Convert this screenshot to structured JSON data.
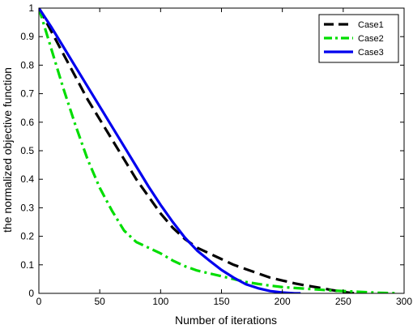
{
  "chart_data": {
    "type": "line",
    "title": "",
    "xlabel": "Number of iterations",
    "ylabel": "the normalized objective function",
    "xlim": [
      0,
      300
    ],
    "ylim": [
      0,
      1
    ],
    "xticks": [
      0,
      50,
      100,
      150,
      200,
      250,
      300
    ],
    "yticks": [
      0,
      0.1,
      0.2,
      0.3,
      0.4,
      0.5,
      0.6,
      0.7,
      0.8,
      0.9,
      1
    ],
    "grid": false,
    "legend_position": "top-right",
    "series": [
      {
        "name": "Case1",
        "color": "#000000",
        "style": "dashed",
        "x": [
          0,
          10,
          20,
          30,
          40,
          50,
          60,
          70,
          80,
          90,
          100,
          110,
          120,
          130,
          140,
          150,
          160,
          170,
          180,
          190,
          200,
          210,
          220,
          230,
          240,
          250,
          260
        ],
        "y": [
          1.0,
          0.92,
          0.84,
          0.76,
          0.68,
          0.61,
          0.54,
          0.47,
          0.4,
          0.34,
          0.28,
          0.23,
          0.19,
          0.16,
          0.14,
          0.12,
          0.1,
          0.085,
          0.07,
          0.055,
          0.045,
          0.035,
          0.027,
          0.02,
          0.012,
          0.005,
          0.0
        ]
      },
      {
        "name": "Case2",
        "color": "#00dd00",
        "style": "dashdot",
        "x": [
          0,
          10,
          20,
          30,
          40,
          50,
          60,
          70,
          80,
          90,
          100,
          110,
          120,
          130,
          140,
          150,
          160,
          170,
          180,
          190,
          200,
          220,
          240,
          260,
          280,
          295
        ],
        "y": [
          1.0,
          0.86,
          0.72,
          0.59,
          0.47,
          0.37,
          0.29,
          0.22,
          0.18,
          0.16,
          0.14,
          0.115,
          0.095,
          0.08,
          0.07,
          0.06,
          0.05,
          0.04,
          0.033,
          0.027,
          0.022,
          0.016,
          0.01,
          0.006,
          0.002,
          0.0
        ]
      },
      {
        "name": "Case3",
        "color": "#0000ee",
        "style": "solid",
        "x": [
          0,
          10,
          20,
          30,
          40,
          50,
          60,
          70,
          80,
          90,
          100,
          110,
          120,
          130,
          140,
          150,
          160,
          170,
          180,
          190,
          200,
          210,
          215
        ],
        "y": [
          1.0,
          0.935,
          0.865,
          0.795,
          0.725,
          0.655,
          0.585,
          0.515,
          0.445,
          0.375,
          0.31,
          0.25,
          0.195,
          0.15,
          0.115,
          0.082,
          0.055,
          0.032,
          0.018,
          0.008,
          0.003,
          0.0,
          0.0
        ]
      }
    ]
  }
}
